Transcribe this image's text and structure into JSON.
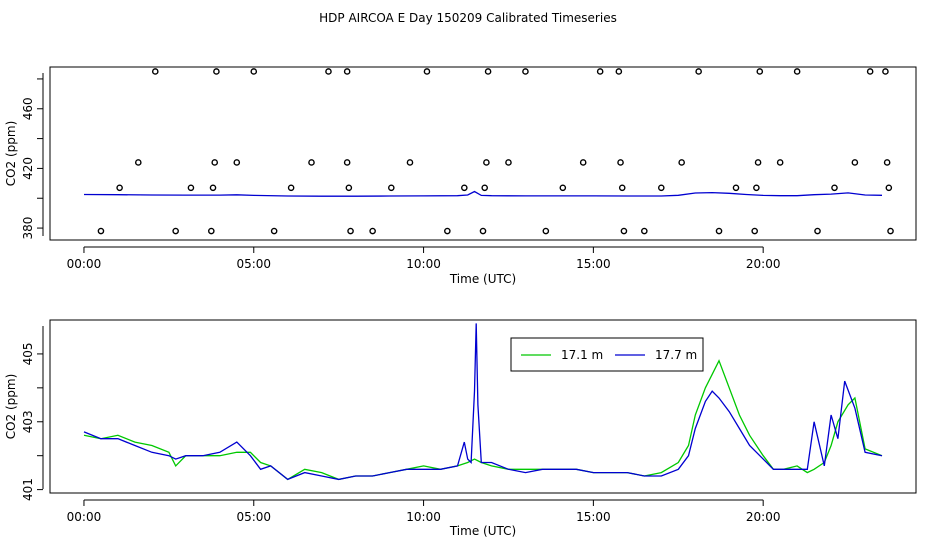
{
  "title": "HDP AIRCOA E  Day 150209  Calibrated Timeseries",
  "colors": {
    "green": "#00c800",
    "blue": "#0000d0",
    "axis": "#000000"
  },
  "chart_data": [
    {
      "type": "line+scatter",
      "xlabel": "Time (UTC)",
      "ylabel": "CO2 (ppm)",
      "xlim": [
        -1.0,
        24.5
      ],
      "ylim": [
        372,
        488
      ],
      "xticks": [
        0,
        5,
        10,
        15,
        20
      ],
      "xtick_labels": [
        "00:00",
        "05:00",
        "10:00",
        "15:00",
        "20:00"
      ],
      "yticks": [
        380,
        420,
        460
      ],
      "ytick_labels": [
        "380",
        "420",
        "460"
      ],
      "series": [
        {
          "kind": "line",
          "color": "blue",
          "x": [
            0,
            1,
            2,
            3,
            4,
            4.5,
            5,
            6,
            7,
            8,
            9,
            10,
            11,
            11.3,
            11.5,
            11.7,
            12,
            13,
            14,
            15,
            16,
            17,
            17.5,
            18,
            18.5,
            19,
            19.5,
            20,
            20.5,
            21,
            21.5,
            22,
            22.5,
            23,
            23.5
          ],
          "y": [
            402.5,
            402.4,
            402.2,
            402.1,
            402.1,
            402.3,
            401.9,
            401.5,
            401.4,
            401.4,
            401.5,
            401.6,
            401.7,
            402.2,
            404.5,
            401.9,
            401.7,
            401.6,
            401.6,
            401.6,
            401.5,
            401.5,
            402,
            403.5,
            403.8,
            403.3,
            402.5,
            401.9,
            401.7,
            401.7,
            402.4,
            402.8,
            403.6,
            402.2,
            402
          ]
        },
        {
          "kind": "points",
          "x": [
            0.5,
            1.05,
            1.6,
            2.1,
            2.7,
            3.15,
            3.75,
            3.8,
            3.85,
            3.9,
            4.5,
            5.0,
            5.6,
            6.1,
            6.7,
            7.2,
            7.75,
            7.75,
            7.8,
            7.85,
            8.5,
            9.05,
            9.6,
            10.1,
            10.7,
            11.2,
            11.75,
            11.8,
            11.85,
            11.9,
            12.5,
            13.0,
            13.6,
            14.1,
            14.7,
            15.2,
            15.75,
            15.8,
            15.85,
            15.9,
            16.5,
            17.0,
            17.6,
            18.1,
            18.7,
            19.2,
            19.75,
            19.8,
            19.85,
            19.9,
            20.5,
            21.0,
            21.6,
            22.1,
            22.7,
            23.15,
            23.6,
            23.65,
            23.7,
            23.75
          ],
          "y": [
            378,
            407,
            424,
            485,
            378,
            407,
            378,
            407,
            424,
            485,
            424,
            485,
            378,
            407,
            424,
            485,
            485,
            424,
            407,
            378,
            378,
            407,
            424,
            485,
            378,
            407,
            378,
            407,
            424,
            485,
            424,
            485,
            378,
            407,
            424,
            485,
            485,
            424,
            407,
            378,
            378,
            407,
            424,
            485,
            378,
            407,
            378,
            407,
            424,
            485,
            424,
            485,
            378,
            407,
            424,
            485,
            485,
            424,
            407,
            378
          ]
        }
      ]
    },
    {
      "type": "line",
      "xlabel": "Time (UTC)",
      "ylabel": "CO2 (ppm)",
      "xlim": [
        -1.0,
        24.5
      ],
      "ylim": [
        400.9,
        406.0
      ],
      "xticks": [
        0,
        5,
        10,
        15,
        20
      ],
      "xtick_labels": [
        "00:00",
        "05:00",
        "10:00",
        "15:00",
        "20:00"
      ],
      "yticks": [
        401,
        403,
        405
      ],
      "ytick_labels": [
        "401",
        "403",
        "405"
      ],
      "legend_position": "top-center",
      "series": [
        {
          "name": "17.1 m",
          "color": "green",
          "x": [
            0,
            0.5,
            1,
            1.5,
            2,
            2.5,
            2.7,
            3,
            3.5,
            4,
            4.5,
            4.9,
            5.2,
            5.5,
            6,
            6.5,
            7,
            7.5,
            8,
            8.5,
            9,
            9.5,
            10,
            10.5,
            11,
            11.3,
            11.5,
            11.7,
            12,
            12.5,
            13,
            13.5,
            14,
            14.5,
            15,
            15.5,
            16,
            16.5,
            17,
            17.5,
            17.8,
            18,
            18.3,
            18.5,
            18.7,
            19,
            19.3,
            19.6,
            20,
            20.3,
            20.6,
            21,
            21.3,
            21.5,
            21.8,
            22,
            22.2,
            22.5,
            22.7,
            23,
            23.5
          ],
          "y": [
            402.6,
            402.5,
            402.6,
            402.4,
            402.3,
            402.1,
            401.7,
            402.0,
            402.0,
            402.0,
            402.1,
            402.1,
            401.8,
            401.7,
            401.3,
            401.6,
            401.5,
            401.3,
            401.4,
            401.4,
            401.5,
            401.6,
            401.7,
            401.6,
            401.7,
            401.8,
            401.9,
            401.8,
            401.7,
            401.6,
            401.6,
            401.6,
            401.6,
            401.6,
            401.5,
            401.5,
            401.5,
            401.4,
            401.5,
            401.8,
            402.3,
            403.2,
            404.0,
            404.4,
            404.8,
            404.0,
            403.2,
            402.6,
            402.0,
            401.6,
            401.6,
            401.7,
            401.5,
            401.6,
            401.8,
            402.3,
            403.0,
            403.5,
            403.7,
            402.2,
            402.0
          ]
        },
        {
          "name": "17.7 m",
          "color": "blue",
          "x": [
            0,
            0.5,
            1,
            1.5,
            2,
            2.5,
            2.7,
            3,
            3.5,
            4,
            4.5,
            4.9,
            5.2,
            5.5,
            6,
            6.5,
            7,
            7.5,
            8,
            8.5,
            9,
            9.5,
            10,
            10.5,
            11,
            11.2,
            11.3,
            11.4,
            11.5,
            11.55,
            11.6,
            11.7,
            12,
            12.5,
            13,
            13.5,
            14,
            14.5,
            15,
            15.5,
            16,
            16.5,
            17,
            17.5,
            17.8,
            18,
            18.3,
            18.5,
            18.7,
            19,
            19.3,
            19.6,
            20,
            20.3,
            20.6,
            21,
            21.3,
            21.5,
            21.8,
            22,
            22.2,
            22.4,
            22.7,
            23,
            23.5
          ],
          "y": [
            402.7,
            402.5,
            402.5,
            402.3,
            402.1,
            402.0,
            401.9,
            402.0,
            402.0,
            402.1,
            402.4,
            402.0,
            401.6,
            401.7,
            401.3,
            401.5,
            401.4,
            401.3,
            401.4,
            401.4,
            401.5,
            401.6,
            401.6,
            401.6,
            401.7,
            402.4,
            401.9,
            401.8,
            403.9,
            405.9,
            403.5,
            401.8,
            401.8,
            401.6,
            401.5,
            401.6,
            401.6,
            401.6,
            401.5,
            401.5,
            401.5,
            401.4,
            401.4,
            401.6,
            402.0,
            402.8,
            403.6,
            403.9,
            403.7,
            403.3,
            402.8,
            402.3,
            401.9,
            401.6,
            401.6,
            401.6,
            401.6,
            403.0,
            401.7,
            403.2,
            402.5,
            404.2,
            403.4,
            402.1,
            402.0
          ]
        }
      ]
    }
  ]
}
